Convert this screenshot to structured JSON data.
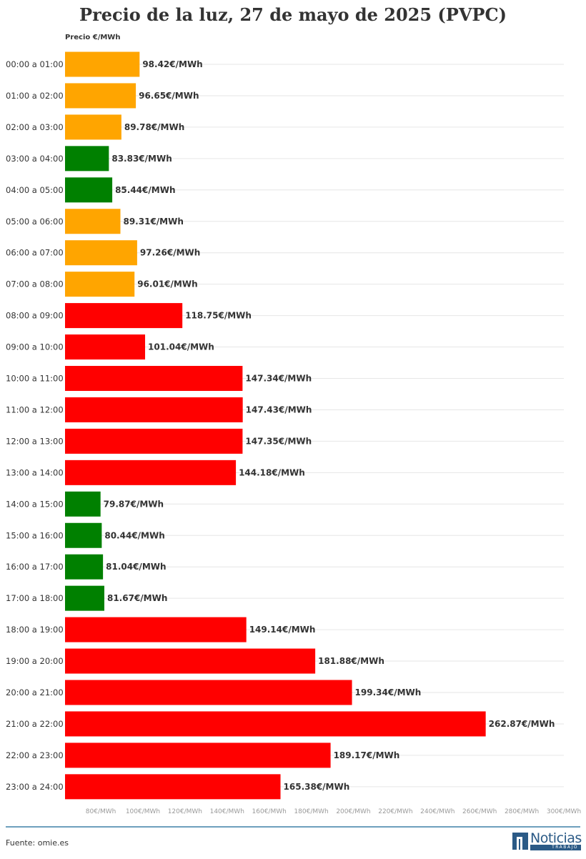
{
  "chart_data": {
    "type": "bar",
    "orientation": "horizontal",
    "title": "Precio de la luz, 27 de mayo de 2025 (PVPC)",
    "ylabel": "Precio €/MWh",
    "xlim": [
      63,
      300
    ],
    "x_ticks": [
      "80€/MWh",
      "100€/MWh",
      "120€/MWh",
      "140€/MWh",
      "160€/MWh",
      "180€/MWh",
      "200€/MWh",
      "220€/MWh",
      "240€/MWh",
      "260€/MWh",
      "280€/MWh",
      "300€/MWh"
    ],
    "x_tick_values": [
      80,
      100,
      120,
      140,
      160,
      180,
      200,
      220,
      240,
      260,
      280,
      300
    ],
    "grid": true,
    "categories": [
      "00:00 a 01:00",
      "01:00 a 02:00",
      "02:00 a 03:00",
      "03:00 a 04:00",
      "04:00 a 05:00",
      "05:00 a 06:00",
      "06:00 a 07:00",
      "07:00 a 08:00",
      "08:00 a 09:00",
      "09:00 a 10:00",
      "10:00 a 11:00",
      "11:00 a 12:00",
      "12:00 a 13:00",
      "13:00 a 14:00",
      "14:00 a 15:00",
      "15:00 a 16:00",
      "16:00 a 17:00",
      "17:00 a 18:00",
      "18:00 a 19:00",
      "19:00 a 20:00",
      "20:00 a 21:00",
      "21:00 a 22:00",
      "22:00 a 23:00",
      "23:00 a 24:00"
    ],
    "values": [
      98.42,
      96.65,
      89.78,
      83.83,
      85.44,
      89.31,
      97.26,
      96.01,
      118.75,
      101.04,
      147.34,
      147.43,
      147.35,
      144.18,
      79.87,
      80.44,
      81.04,
      81.67,
      149.14,
      181.88,
      199.34,
      262.87,
      189.17,
      165.38
    ],
    "value_labels": [
      "98.42€/MWh",
      "96.65€/MWh",
      "89.78€/MWh",
      "83.83€/MWh",
      "85.44€/MWh",
      "89.31€/MWh",
      "97.26€/MWh",
      "96.01€/MWh",
      "118.75€/MWh",
      "101.04€/MWh",
      "147.34€/MWh",
      "147.43€/MWh",
      "147.35€/MWh",
      "144.18€/MWh",
      "79.87€/MWh",
      "80.44€/MWh",
      "81.04€/MWh",
      "81.67€/MWh",
      "149.14€/MWh",
      "181.88€/MWh",
      "199.34€/MWh",
      "262.87€/MWh",
      "189.17€/MWh",
      "165.38€/MWh"
    ],
    "bar_colors": [
      "#ffa500",
      "#ffa500",
      "#ffa500",
      "#008000",
      "#008000",
      "#ffa500",
      "#ffa500",
      "#ffa500",
      "#ff0000",
      "#ff0000",
      "#ff0000",
      "#ff0000",
      "#ff0000",
      "#ff0000",
      "#008000",
      "#008000",
      "#008000",
      "#008000",
      "#ff0000",
      "#ff0000",
      "#ff0000",
      "#ff0000",
      "#ff0000",
      "#ff0000"
    ]
  },
  "footer": {
    "source": "Fuente: omie.es",
    "logo_name": "Noticias",
    "logo_sub": "TRABAJO"
  },
  "colors": {
    "low": "#008000",
    "mid": "#ffa500",
    "high": "#ff0000",
    "rule": "#6e9fbd",
    "brand": "#2b5a86"
  }
}
